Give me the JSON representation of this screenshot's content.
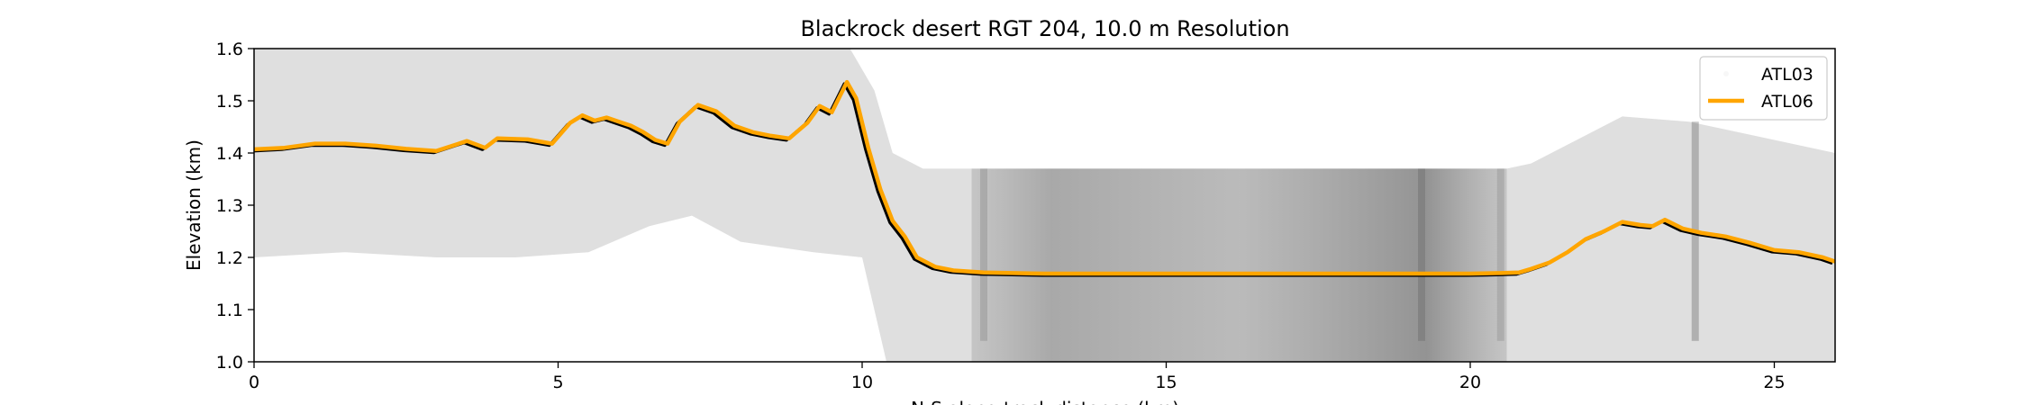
{
  "chart_data": {
    "type": "line",
    "title": "Blackrock desert RGT 204, 10.0 m Resolution",
    "xlabel": "N-S along track distance (km)",
    "ylabel": "Elevation (km)",
    "xlim": [
      0,
      26
    ],
    "ylim": [
      1.0,
      1.6
    ],
    "xticks": [
      0,
      5,
      10,
      15,
      20,
      25
    ],
    "yticks": [
      1.0,
      1.1,
      1.2,
      1.3,
      1.4,
      1.5,
      1.6
    ],
    "xtick_labels": [
      "0",
      "5",
      "10",
      "15",
      "20",
      "25"
    ],
    "ytick_labels": [
      "1.0",
      "1.1",
      "1.2",
      "1.3",
      "1.4",
      "1.5",
      "1.6"
    ],
    "grid": false,
    "legend": {
      "placement": "top-right",
      "entries": [
        "ATL03",
        "ATL06"
      ]
    },
    "colors": {
      "atl06": "#ffa500",
      "reference": "#000000",
      "photons": "#888888"
    },
    "series": [
      {
        "name": "ATL06",
        "x": [
          0,
          0.5,
          1,
          1.5,
          2,
          2.5,
          3,
          3.5,
          3.8,
          4,
          4.5,
          4.9,
          5.2,
          5.4,
          5.6,
          5.8,
          6,
          6.2,
          6.4,
          6.6,
          6.8,
          7,
          7.3,
          7.6,
          7.9,
          8.2,
          8.5,
          8.8,
          9.1,
          9.3,
          9.5,
          9.75,
          9.9,
          10.1,
          10.3,
          10.5,
          10.7,
          10.9,
          11.2,
          11.5,
          12,
          13,
          14,
          15,
          16,
          17,
          18,
          19,
          20,
          20.5,
          20.8,
          21,
          21.3,
          21.6,
          21.9,
          22.2,
          22.5,
          22.8,
          23,
          23.2,
          23.5,
          23.8,
          24.2,
          24.6,
          25,
          25.4,
          25.8,
          26
        ],
        "y": [
          1.407,
          1.41,
          1.418,
          1.418,
          1.414,
          1.408,
          1.404,
          1.423,
          1.41,
          1.428,
          1.426,
          1.418,
          1.458,
          1.472,
          1.462,
          1.468,
          1.46,
          1.452,
          1.44,
          1.425,
          1.418,
          1.46,
          1.492,
          1.48,
          1.452,
          1.44,
          1.433,
          1.428,
          1.458,
          1.49,
          1.478,
          1.536,
          1.505,
          1.41,
          1.33,
          1.27,
          1.24,
          1.2,
          1.182,
          1.175,
          1.171,
          1.169,
          1.169,
          1.169,
          1.169,
          1.169,
          1.169,
          1.169,
          1.169,
          1.17,
          1.171,
          1.178,
          1.19,
          1.21,
          1.235,
          1.25,
          1.268,
          1.262,
          1.26,
          1.272,
          1.255,
          1.247,
          1.24,
          1.228,
          1.214,
          1.21,
          1.2,
          1.192
        ]
      }
    ]
  }
}
